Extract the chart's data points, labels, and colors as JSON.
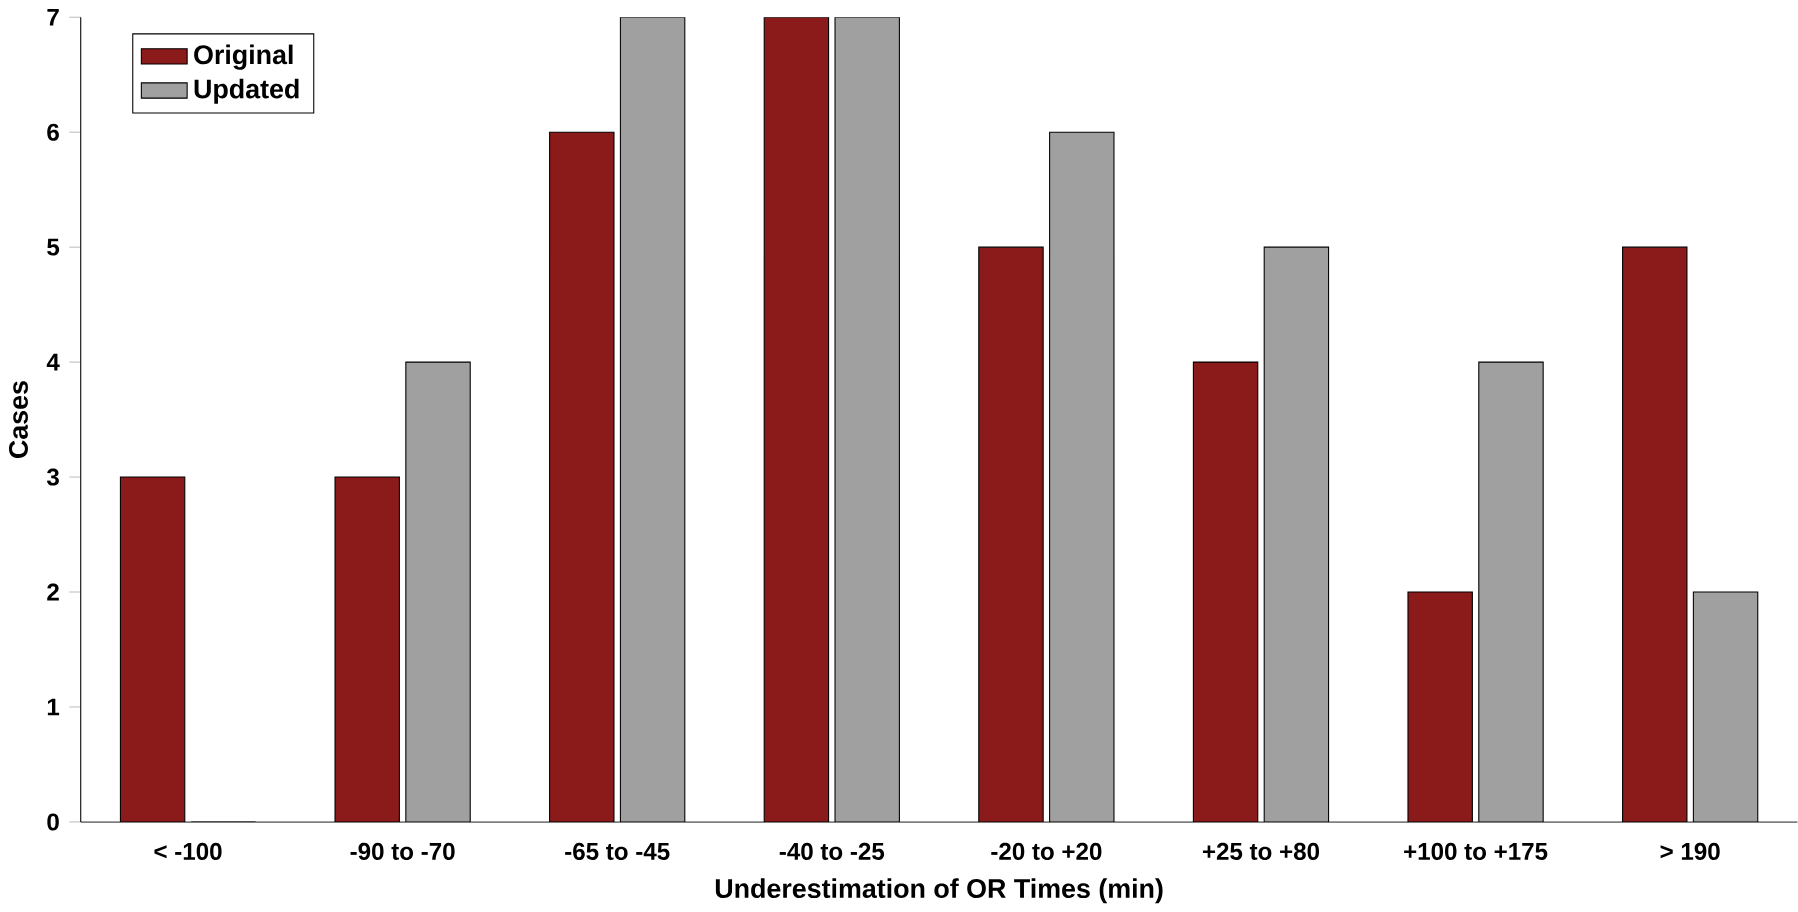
{
  "chart_data": {
    "type": "bar",
    "xlabel": "Underestimation of OR Times (min)",
    "ylabel": "Cases",
    "categories": [
      "< -100",
      "-90 to -70",
      "-65 to -45",
      "-40 to -25",
      "-20 to +20",
      "+25 to +80",
      "+100 to +175",
      "> 190"
    ],
    "series": [
      {
        "name": "Original",
        "color": "#8b1a1a",
        "values": [
          3,
          3,
          6,
          7,
          5,
          4,
          2,
          5
        ]
      },
      {
        "name": "Updated",
        "color": "#a0a0a0",
        "values": [
          0,
          4,
          7,
          7,
          6,
          5,
          4,
          2
        ]
      }
    ],
    "ylim": [
      0,
      7
    ],
    "yticks": [
      0,
      1,
      2,
      3,
      4,
      5,
      6,
      7
    ],
    "grid": false,
    "legend": "top left"
  }
}
